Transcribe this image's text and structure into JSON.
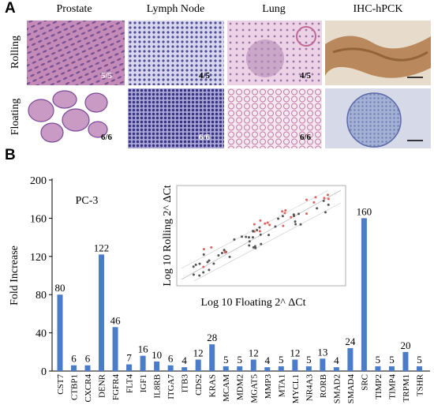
{
  "panel_a": {
    "letter": "A",
    "columns": [
      "Prostate",
      "Lymph Node",
      "Lung",
      "IHC-hPCK"
    ],
    "rows": [
      "Rolling",
      "Floating"
    ],
    "ratios": {
      "rolling": [
        "5/5",
        "4/5",
        "4/5"
      ],
      "floating": [
        "6/6",
        "6/6",
        "6/6"
      ]
    },
    "colors": {
      "he_pink": "#c07aa8",
      "he_purple": "#5e4e9a",
      "ihc_brown": "#b07a4a",
      "ihc_blue": "#8c9cc4"
    }
  },
  "panel_b": {
    "letter": "B"
  },
  "chart_data": {
    "type": "bar",
    "title": "PC-3",
    "ylabel": "Fold Increase",
    "ylim": [
      0,
      200
    ],
    "yticks": [
      0,
      40,
      80,
      120,
      160,
      200
    ],
    "bar_color": "#4a7cc9",
    "categories": [
      "CST7",
      "CTBP1",
      "CXCR4",
      "DENR",
      "FGFR4",
      "FLT4",
      "IGF1",
      "IL8RB",
      "ITGA7",
      "ITB3",
      "CDS2",
      "KRAS",
      "MCAM",
      "MDM2",
      "MGAT5",
      "MMP3",
      "MTA1",
      "MYCL1",
      "NR4A3",
      "RORB",
      "SMAD2",
      "SMAD4",
      "SRC",
      "TIMP2",
      "TIMP4",
      "TRPM1",
      "TSHR"
    ],
    "values": [
      80,
      6,
      6,
      122,
      46,
      7,
      16,
      10,
      6,
      4,
      12,
      28,
      5,
      5,
      12,
      4,
      5,
      12,
      5,
      13,
      4,
      24,
      160,
      5,
      5,
      20,
      5
    ],
    "inset": {
      "type": "scatter",
      "xlabel": "Log 10 Floating  2^ ΔCt",
      "ylabel": "Log 10 Rolling 2^ ΔCt"
    }
  }
}
